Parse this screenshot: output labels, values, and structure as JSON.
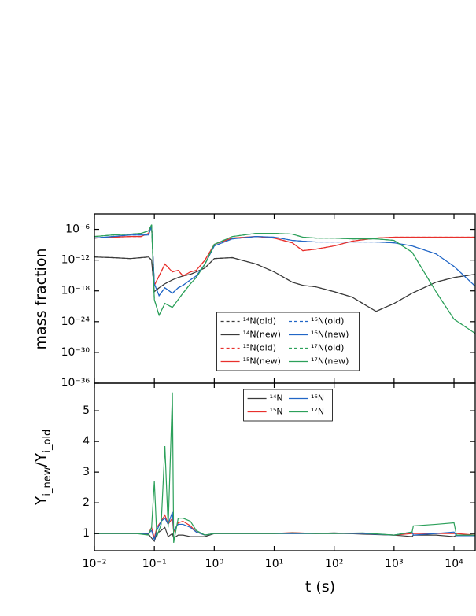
{
  "chart_data": [
    {
      "type": "line",
      "ylabel": "mass fraction",
      "xscale": "log",
      "yscale": "log",
      "xlim": [
        0.01,
        22600
      ],
      "ylim": [
        1e-36,
        0.001
      ],
      "yticks": [
        {
          "value": 1e-36,
          "label": "10⁻³⁶"
        },
        {
          "value": 1e-30,
          "label": "10⁻³⁰"
        },
        {
          "value": 1e-24,
          "label": "10⁻²⁴"
        },
        {
          "value": 1e-18,
          "label": "10⁻¹⁸"
        },
        {
          "value": 1e-12,
          "label": "10⁻¹²"
        },
        {
          "value": 1e-06,
          "label": "10⁻⁶"
        }
      ],
      "legend": "lower center",
      "x": [
        0.01,
        0.02,
        0.04,
        0.06,
        0.08,
        0.09,
        0.1,
        0.12,
        0.15,
        0.2,
        0.25,
        0.3,
        0.4,
        0.5,
        0.7,
        1,
        2,
        5,
        10,
        20,
        30,
        50,
        100,
        200,
        500,
        1000,
        2000,
        5000,
        10000,
        22600
      ],
      "series": [
        {
          "name": "¹⁴N(old)",
          "color": "#3a3a3a",
          "dashed": true,
          "values": [
            4e-12,
            3e-12,
            2e-12,
            3e-12,
            4e-12,
            1e-12,
            7e-19,
            4e-18,
            2.4e-17,
            1.4e-16,
            4e-16,
            8e-16,
            1.7e-15,
            5e-15,
            3e-14,
            2e-12,
            3e-12,
            1.7e-13,
            5e-15,
            5e-17,
            1.2e-17,
            6e-18,
            7e-19,
            6e-20,
            1e-22,
            3.5e-21,
            3.5e-19,
            5e-17,
            4e-16,
            1.7e-15
          ]
        },
        {
          "name": "¹⁴N(new)",
          "color": "#3a3a3a",
          "dashed": false,
          "values": [
            4e-12,
            3e-12,
            2e-12,
            3e-12,
            4e-12,
            1e-12,
            7e-19,
            4e-18,
            2.4e-17,
            1.4e-16,
            4e-16,
            8e-16,
            1.7e-15,
            5e-15,
            3e-14,
            2e-12,
            3e-12,
            1.7e-13,
            5e-15,
            5e-17,
            1.2e-17,
            6e-18,
            7e-19,
            6e-20,
            1e-22,
            3.5e-21,
            3.5e-19,
            5e-17,
            4e-16,
            1.7e-15
          ]
        },
        {
          "name": "¹⁵N(old)",
          "color": "#e8302c",
          "dashed": true,
          "values": [
            2e-08,
            3e-08,
            4e-08,
            4e-08,
            1.7e-07,
            4e-06,
            1.2e-17,
            8e-16,
            1.7e-13,
            5e-15,
            1e-14,
            8e-16,
            5e-15,
            1e-14,
            1e-12,
            1.2e-09,
            2e-08,
            4e-08,
            2e-08,
            2.4e-09,
            7e-11,
            1.4e-10,
            6e-10,
            5e-09,
            2e-08,
            3e-08,
            3e-08,
            3e-08,
            3e-08,
            3e-08
          ]
        },
        {
          "name": "¹⁵N(new)",
          "color": "#e8302c",
          "dashed": false,
          "values": [
            2e-08,
            3e-08,
            4e-08,
            4e-08,
            1.7e-07,
            4e-06,
            1.2e-17,
            8e-16,
            1.7e-13,
            5e-15,
            1e-14,
            8e-16,
            5e-15,
            1e-14,
            1e-12,
            1.2e-09,
            2e-08,
            4e-08,
            2e-08,
            2.4e-09,
            7e-11,
            1.4e-10,
            6e-10,
            5e-09,
            2e-08,
            3e-08,
            3e-08,
            3e-08,
            3e-08,
            3e-08
          ]
        },
        {
          "name": "¹⁶N(old)",
          "color": "#2166c6",
          "dashed": true,
          "values": [
            2e-08,
            4e-08,
            8e-08,
            8e-08,
            8e-08,
            4e-06,
            2.4e-17,
            1.2e-19,
            4e-18,
            3.5e-19,
            4e-18,
            1.2e-17,
            1.4e-16,
            8e-16,
            1.7e-13,
            6e-10,
            1.4e-08,
            4e-08,
            3e-08,
            7e-09,
            5e-09,
            3.5e-09,
            3.5e-09,
            3.5e-09,
            3.5e-09,
            2.4e-09,
            6e-10,
            1.7e-11,
            6e-14,
            8e-18
          ]
        },
        {
          "name": "¹⁶N(new)",
          "color": "#2166c6",
          "dashed": false,
          "values": [
            2e-08,
            4e-08,
            8e-08,
            8e-08,
            8e-08,
            4e-06,
            2.4e-17,
            1.2e-19,
            4e-18,
            3.5e-19,
            4e-18,
            1.2e-17,
            1.4e-16,
            8e-16,
            1.7e-13,
            6e-10,
            1.4e-08,
            4e-08,
            3e-08,
            7e-09,
            5e-09,
            3.5e-09,
            3.5e-09,
            3.5e-09,
            3.5e-09,
            2.4e-09,
            6e-10,
            1.7e-11,
            6e-14,
            8e-18
          ]
        },
        {
          "name": "¹⁷N(old)",
          "color": "#2ca05a",
          "dashed": true,
          "values": [
            4e-08,
            8e-08,
            1.2e-07,
            1.7e-07,
            5e-07,
            8e-06,
            2e-20,
            1.7e-23,
            3.5e-21,
            6e-22,
            2e-20,
            3.5e-19,
            2.4e-17,
            4e-16,
            1.7e-13,
            1.2e-09,
            4e-08,
            1.7e-07,
            1.7e-07,
            1.2e-07,
            3e-08,
            2e-08,
            2e-08,
            1.4e-08,
            1.4e-08,
            7e-09,
            3.5e-11,
            7e-19,
            3e-24,
            5e-27
          ]
        },
        {
          "name": "¹⁷N(new)",
          "color": "#2ca05a",
          "dashed": false,
          "values": [
            4e-08,
            8e-08,
            1.2e-07,
            1.7e-07,
            5e-07,
            8e-06,
            2e-20,
            1.7e-23,
            3.5e-21,
            6e-22,
            2e-20,
            3.5e-19,
            2.4e-17,
            4e-16,
            1.7e-13,
            1.2e-09,
            4e-08,
            1.7e-07,
            1.7e-07,
            1.2e-07,
            3e-08,
            2e-08,
            2e-08,
            1.4e-08,
            1.4e-08,
            7e-09,
            3.5e-11,
            7e-19,
            3e-24,
            5e-27
          ]
        }
      ]
    },
    {
      "type": "line",
      "ylabel_parts": [
        "Y",
        "i_new",
        "/Y",
        "i_old"
      ],
      "xlabel": "t (s)",
      "xscale": "log",
      "yscale": "linear",
      "xlim": [
        0.01,
        22600
      ],
      "ylim": [
        0.44,
        5.9
      ],
      "xticks": [
        {
          "value": 0.01,
          "label": "10⁻²"
        },
        {
          "value": 0.1,
          "label": "10⁻¹"
        },
        {
          "value": 1,
          "label": "10⁰"
        },
        {
          "value": 10,
          "label": "10¹"
        },
        {
          "value": 100,
          "label": "10²"
        },
        {
          "value": 1000,
          "label": "10³"
        },
        {
          "value": 10000,
          "label": "10⁴"
        }
      ],
      "yticks": [
        1,
        2,
        3,
        4,
        5
      ],
      "legend": "upper center",
      "x": [
        0.01,
        0.05,
        0.08,
        0.09,
        0.1,
        0.11,
        0.13,
        0.15,
        0.17,
        0.2,
        0.21,
        0.25,
        0.3,
        0.4,
        0.5,
        0.7,
        1,
        10,
        20,
        50,
        100,
        300,
        1000,
        2000,
        2100,
        5000,
        10000,
        11000,
        22600
      ],
      "series": [
        {
          "name": "¹⁴N",
          "color": "#3a3a3a",
          "values": [
            1,
            1,
            0.98,
            0.85,
            0.75,
            1,
            1.1,
            1.2,
            0.9,
            1,
            0.85,
            0.95,
            0.95,
            0.9,
            0.9,
            0.9,
            1,
            1,
            1,
            1,
            1.02,
            0.98,
            0.95,
            0.9,
            0.95,
            0.95,
            0.9,
            0.95,
            0.95
          ]
        },
        {
          "name": "¹⁵N",
          "color": "#e8302c",
          "values": [
            1,
            1,
            1,
            1.2,
            0.85,
            1.2,
            1.4,
            1.6,
            1.3,
            1.5,
            1.05,
            1.35,
            1.4,
            1.25,
            1.05,
            0.95,
            1,
            1,
            1.03,
            1,
            1,
            1,
            0.95,
            1,
            1,
            1,
            1,
            1,
            0.95
          ]
        },
        {
          "name": "¹⁶N",
          "color": "#2166c6",
          "values": [
            1,
            1,
            1,
            1.1,
            0.8,
            1.1,
            1.4,
            1.5,
            1.3,
            1.7,
            1.1,
            1.3,
            1.3,
            1.2,
            1.05,
            0.95,
            1,
            1,
            1,
            1,
            1,
            1,
            0.95,
            1.05,
            0.95,
            1,
            1.05,
            0.93,
            0.93
          ]
        },
        {
          "name": "¹⁷N",
          "color": "#2ca05a",
          "values": [
            1,
            1,
            0.95,
            1.2,
            2.7,
            0.9,
            1.3,
            3.85,
            1.2,
            5.6,
            0.7,
            1.5,
            1.5,
            1.4,
            1.1,
            0.95,
            1,
            1,
            1.02,
            1,
            1,
            1.02,
            0.95,
            1.05,
            1.25,
            1.3,
            1.35,
            0.95,
            0.95
          ]
        }
      ]
    }
  ]
}
